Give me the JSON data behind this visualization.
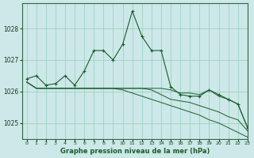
{
  "title": "Graphe pression niveau de la mer (hPa)",
  "background_color": "#cce8e8",
  "grid_color": "#99ccbb",
  "line_color": "#1a5c2a",
  "xlim": [
    -0.5,
    23
  ],
  "ylim": [
    1024.5,
    1028.8
  ],
  "xticks": [
    0,
    1,
    2,
    3,
    4,
    5,
    6,
    7,
    8,
    9,
    10,
    11,
    12,
    13,
    14,
    15,
    16,
    17,
    18,
    19,
    20,
    21,
    22,
    23
  ],
  "yticks": [
    1025,
    1026,
    1027,
    1028
  ],
  "line1": [
    1026.4,
    1026.5,
    1026.2,
    1026.25,
    1026.5,
    1026.2,
    1026.65,
    1027.3,
    1027.3,
    1027.0,
    1027.5,
    1028.55,
    1027.75,
    1027.3,
    1027.3,
    1026.15,
    1025.9,
    1025.85,
    1025.85,
    1026.05,
    1025.9,
    1025.75,
    1025.6,
    1024.85
  ],
  "line2": [
    1026.3,
    1026.1,
    1026.1,
    1026.1,
    1026.1,
    1026.1,
    1026.1,
    1026.1,
    1026.1,
    1026.1,
    1026.1,
    1026.1,
    1026.1,
    1026.1,
    1026.1,
    1026.05,
    1025.95,
    1025.95,
    1025.9,
    1026.05,
    1025.85,
    1025.75,
    1025.6,
    1024.85
  ],
  "line3": [
    1026.3,
    1026.1,
    1026.1,
    1026.1,
    1026.1,
    1026.1,
    1026.1,
    1026.1,
    1026.1,
    1026.1,
    1026.1,
    1026.1,
    1026.1,
    1026.05,
    1025.9,
    1025.75,
    1025.7,
    1025.65,
    1025.55,
    1025.45,
    1025.35,
    1025.2,
    1025.1,
    1024.75
  ],
  "line4": [
    1026.3,
    1026.1,
    1026.1,
    1026.1,
    1026.1,
    1026.1,
    1026.1,
    1026.1,
    1026.1,
    1026.1,
    1026.05,
    1025.95,
    1025.85,
    1025.75,
    1025.65,
    1025.55,
    1025.45,
    1025.35,
    1025.25,
    1025.1,
    1025.0,
    1024.85,
    1024.7,
    1024.55
  ]
}
